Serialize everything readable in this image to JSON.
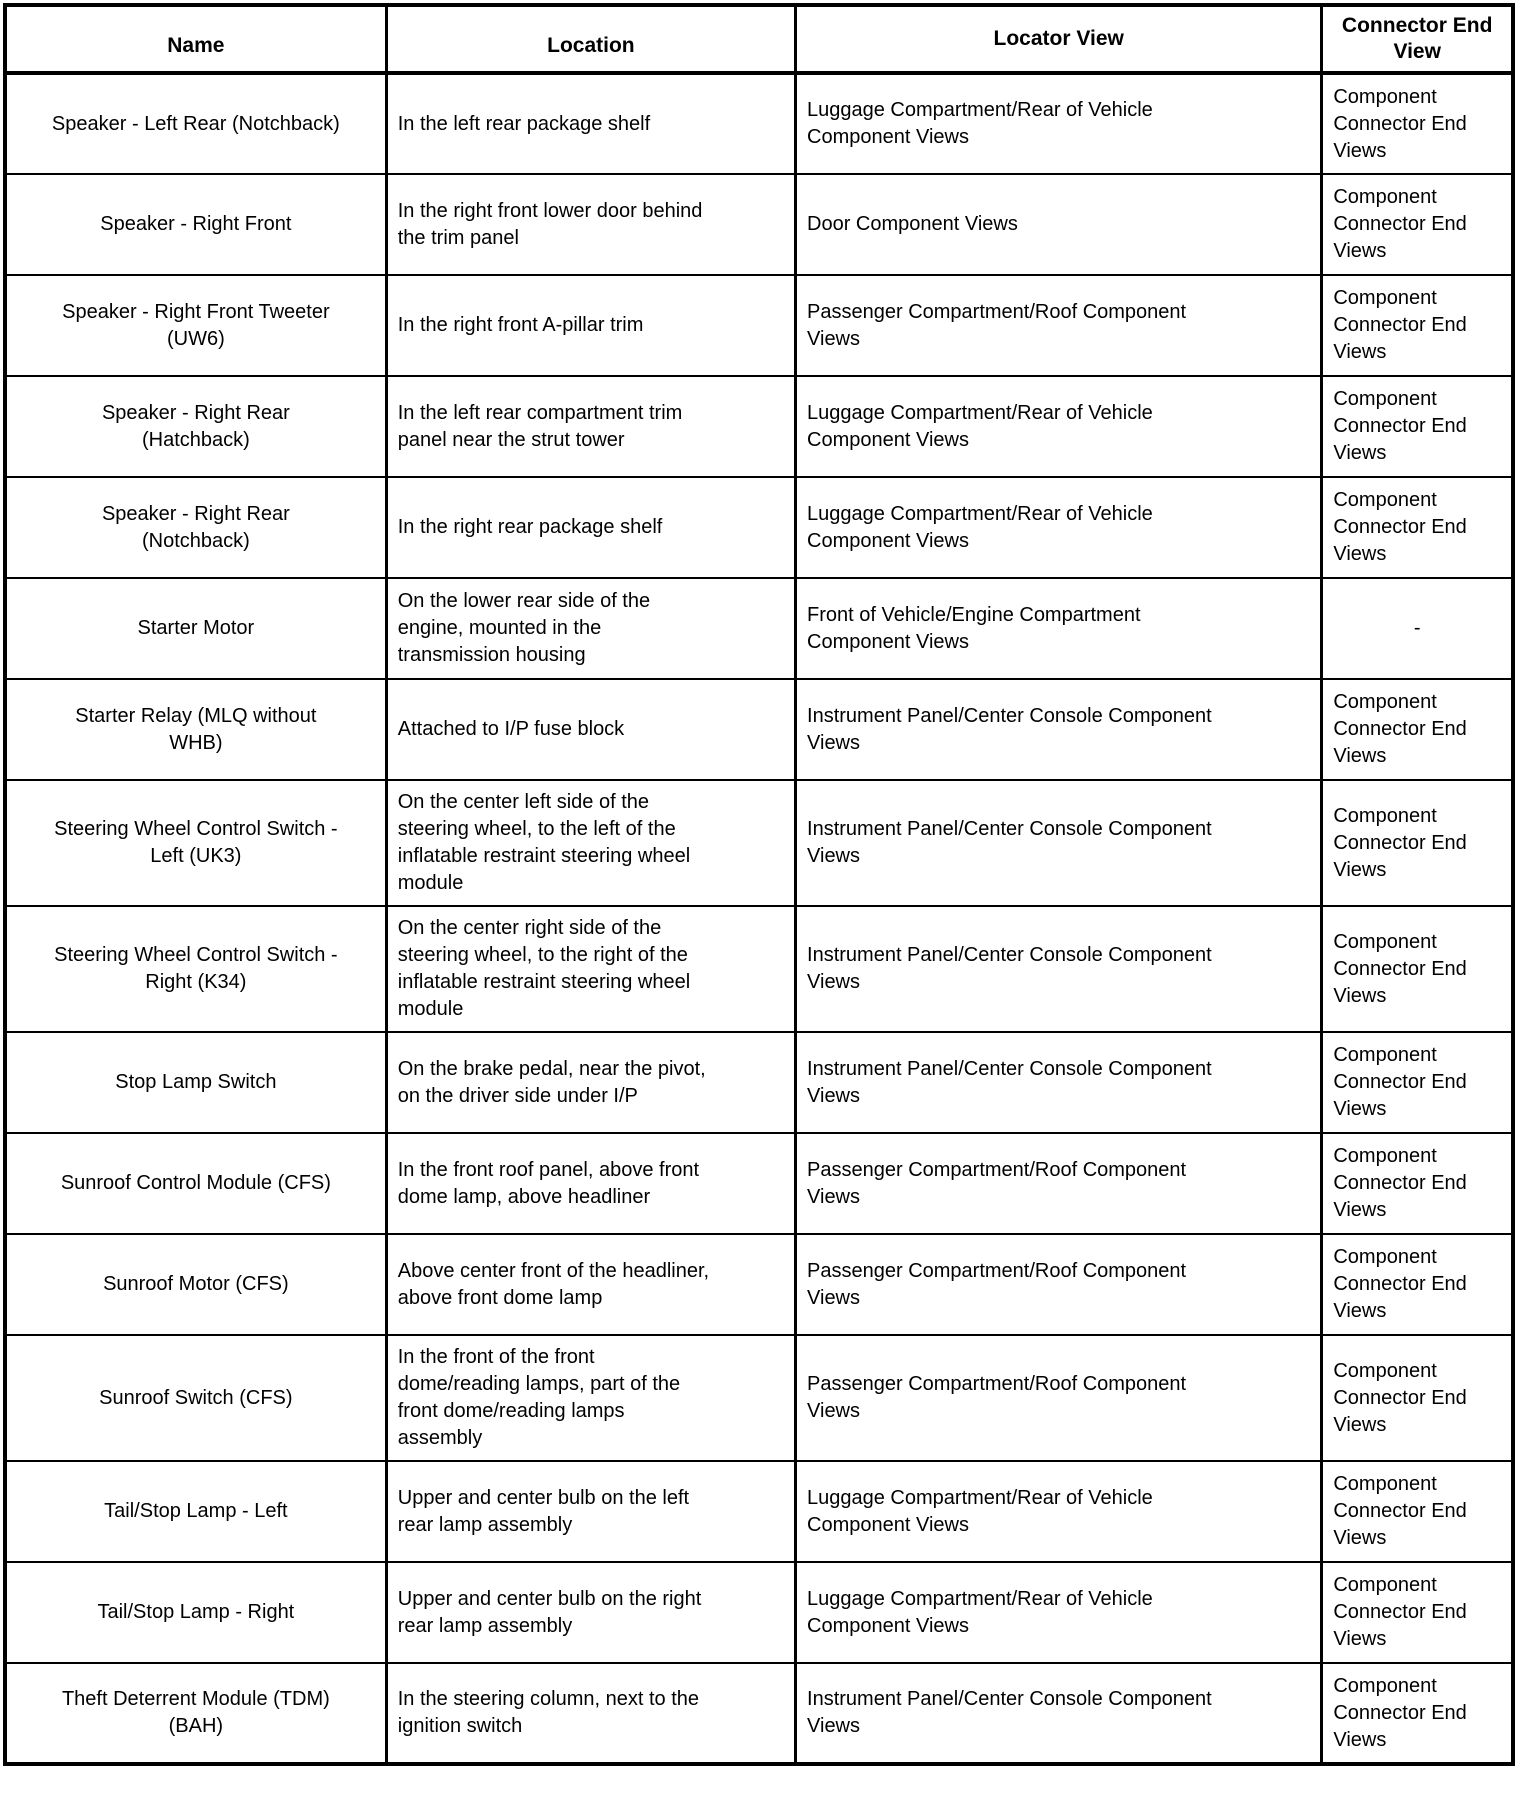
{
  "table": {
    "headers": [
      "Name",
      "Location",
      "Locator View",
      "Connector End\nView"
    ],
    "rows": [
      {
        "name": "Speaker - Left Rear (Notchback)",
        "location": "In the left rear package shelf",
        "locator_view": "Luggage Compartment/Rear of Vehicle\nComponent Views",
        "connector_end_view": "Component\nConnector End\nViews"
      },
      {
        "name": "Speaker - Right Front",
        "location": "In the right front lower door behind\nthe trim panel",
        "locator_view": "Door Component Views",
        "connector_end_view": "Component\nConnector End\nViews"
      },
      {
        "name": "Speaker - Right Front Tweeter\n(UW6)",
        "location": "In the right front A-pillar trim",
        "locator_view": "Passenger Compartment/Roof Component\nViews",
        "connector_end_view": "Component\nConnector End\nViews"
      },
      {
        "name": "Speaker - Right Rear\n(Hatchback)",
        "location": "In the left rear compartment trim\npanel near the strut tower",
        "locator_view": "Luggage Compartment/Rear of Vehicle\nComponent Views",
        "connector_end_view": "Component\nConnector End\nViews"
      },
      {
        "name": "Speaker - Right Rear\n(Notchback)",
        "location": "In the right rear package shelf",
        "locator_view": "Luggage Compartment/Rear of Vehicle\nComponent Views",
        "connector_end_view": "Component\nConnector End\nViews"
      },
      {
        "name": "Starter Motor",
        "location": "On the lower rear side of the\nengine, mounted in the\ntransmission housing",
        "locator_view": "Front of Vehicle/Engine Compartment\nComponent Views",
        "connector_end_view": "-"
      },
      {
        "name": "Starter Relay (MLQ without\nWHB)",
        "location": "Attached to I/P fuse block",
        "locator_view": "Instrument Panel/Center Console Component\nViews",
        "connector_end_view": "Component\nConnector End\nViews"
      },
      {
        "name": "Steering Wheel Control Switch -\nLeft (UK3)",
        "location": "On the center left side of the\nsteering wheel, to the left of the\ninflatable restraint steering wheel\nmodule",
        "locator_view": "Instrument Panel/Center Console Component\nViews",
        "connector_end_view": "Component\nConnector End\nViews"
      },
      {
        "name": "Steering Wheel Control Switch -\nRight (K34)",
        "location": "On the center right side of the\nsteering wheel, to the right of the\ninflatable restraint steering wheel\nmodule",
        "locator_view": "Instrument Panel/Center Console Component\nViews",
        "connector_end_view": "Component\nConnector End\nViews"
      },
      {
        "name": "Stop Lamp Switch",
        "location": "On the brake pedal, near the pivot,\non the driver side under I/P",
        "locator_view": "Instrument Panel/Center Console Component\nViews",
        "connector_end_view": "Component\nConnector End\nViews"
      },
      {
        "name": "Sunroof Control Module (CFS)",
        "location": "In the front roof panel, above front\ndome lamp, above headliner",
        "locator_view": "Passenger Compartment/Roof Component\nViews",
        "connector_end_view": "Component\nConnector End\nViews"
      },
      {
        "name": "Sunroof Motor (CFS)",
        "location": "Above center front of the headliner,\nabove front dome lamp",
        "locator_view": "Passenger Compartment/Roof Component\nViews",
        "connector_end_view": "Component\nConnector End\nViews"
      },
      {
        "name": "Sunroof Switch (CFS)",
        "location": "In the front of the front\ndome/reading lamps, part of the\nfront dome/reading lamps\nassembly",
        "locator_view": "Passenger Compartment/Roof Component\nViews",
        "connector_end_view": "Component\nConnector End\nViews"
      },
      {
        "name": "Tail/Stop Lamp - Left",
        "location": "Upper and center bulb on the left\nrear lamp assembly",
        "locator_view": "Luggage Compartment/Rear of Vehicle\nComponent Views",
        "connector_end_view": "Component\nConnector End\nViews"
      },
      {
        "name": "Tail/Stop Lamp - Right",
        "location": "Upper and center bulb on the right\nrear lamp assembly",
        "locator_view": "Luggage Compartment/Rear of Vehicle\nComponent Views",
        "connector_end_view": "Component\nConnector End\nViews"
      },
      {
        "name": "Theft Deterrent Module (TDM)\n(BAH)",
        "location": "In the steering column, next to the\nignition switch",
        "locator_view": "Instrument Panel/Center Console Component\nViews",
        "connector_end_view": "Component\nConnector End\nViews"
      }
    ]
  }
}
